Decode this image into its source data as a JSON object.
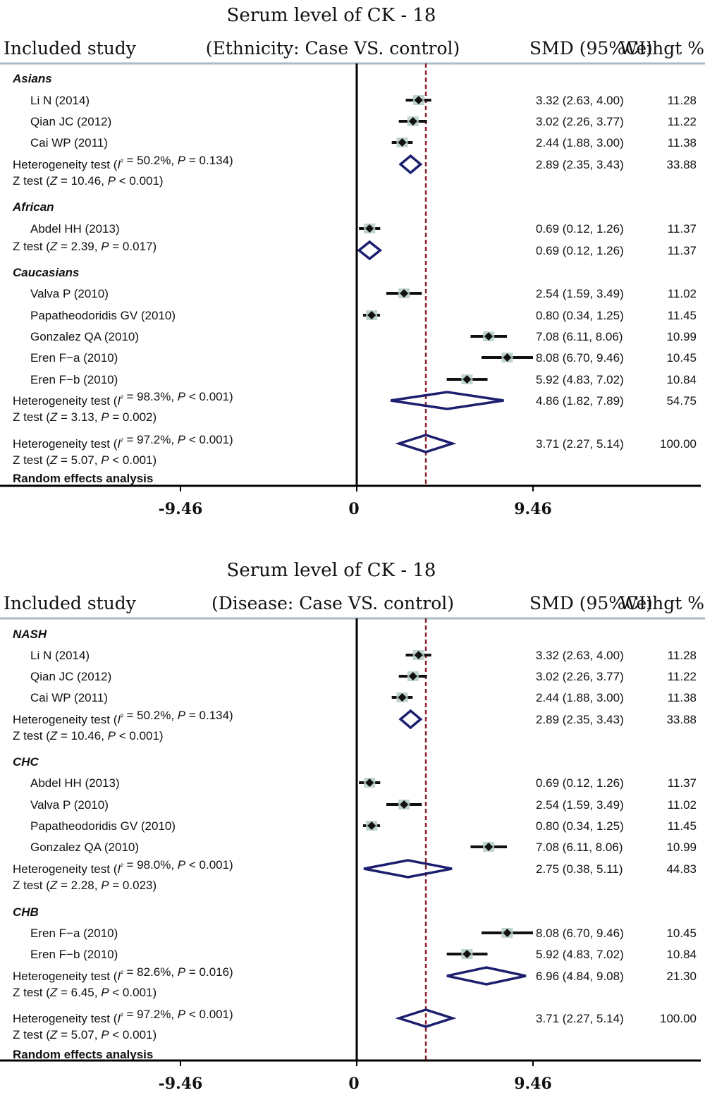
{
  "chart_data": [
    {
      "type": "forest",
      "title": "Serum level of CK - 18",
      "header": {
        "left": "Included study",
        "center": "(Ethnicity: Case VS. control)",
        "right_smd": "SMD (95%CI)",
        "right_weight": "Weihgt %"
      },
      "xticks": [
        "-9.46",
        "0",
        "9.46"
      ],
      "xtick_values": [
        -9.46,
        0,
        9.46
      ],
      "reference_line": 3.71,
      "footer": "Random effects analysis",
      "rows": [
        {
          "kind": "group",
          "label": "Asians"
        },
        {
          "kind": "study",
          "label": "Li N (2014)",
          "est": 3.32,
          "lo": 2.63,
          "hi": 4.0,
          "ci": "3.32 (2.63, 4.00)",
          "weight": "11.28"
        },
        {
          "kind": "study",
          "label": "Qian JC (2012)",
          "est": 3.02,
          "lo": 2.26,
          "hi": 3.77,
          "ci": "3.02 (2.26, 3.77)",
          "weight": "11.22"
        },
        {
          "kind": "study",
          "label": "Cai WP (2011)",
          "est": 2.44,
          "lo": 1.88,
          "hi": 3.0,
          "ci": "2.44 (1.88, 3.00)",
          "weight": "11.38"
        },
        {
          "kind": "pooled",
          "label": "Heterogeneity test (I² = 50.2%, P = 0.134)",
          "ztest": "Z test (Z = 10.46, P < 0.001)",
          "est": 2.89,
          "lo": 2.35,
          "hi": 3.43,
          "ci": "2.89 (2.35, 3.43)",
          "weight": "33.88"
        },
        {
          "kind": "group",
          "label": "African"
        },
        {
          "kind": "study",
          "label": "Abdel HH (2013)",
          "est": 0.69,
          "lo": 0.12,
          "hi": 1.26,
          "ci": "0.69 (0.12, 1.26)",
          "weight": "11.37"
        },
        {
          "kind": "pooled",
          "label": "",
          "ztest": "Z test (Z = 2.39, P = 0.017)",
          "est": 0.69,
          "lo": 0.12,
          "hi": 1.26,
          "ci": "0.69 (0.12, 1.26)",
          "weight": "11.37"
        },
        {
          "kind": "group",
          "label": "Caucasians"
        },
        {
          "kind": "study",
          "label": "Valva P (2010)",
          "est": 2.54,
          "lo": 1.59,
          "hi": 3.49,
          "ci": "2.54 (1.59, 3.49)",
          "weight": "11.02"
        },
        {
          "kind": "study",
          "label": "Papatheodoridis GV (2010)",
          "est": 0.8,
          "lo": 0.34,
          "hi": 1.25,
          "ci": "0.80 (0.34, 1.25)",
          "weight": "11.45"
        },
        {
          "kind": "study",
          "label": "Gonzalez QA (2010)",
          "est": 7.08,
          "lo": 6.11,
          "hi": 8.06,
          "ci": "7.08 (6.11, 8.06)",
          "weight": "10.99"
        },
        {
          "kind": "study",
          "label": "Eren F−a (2010)",
          "est": 8.08,
          "lo": 6.7,
          "hi": 9.46,
          "ci": "8.08 (6.70, 9.46)",
          "weight": "10.45"
        },
        {
          "kind": "study",
          "label": "Eren F−b (2010)",
          "est": 5.92,
          "lo": 4.83,
          "hi": 7.02,
          "ci": "5.92 (4.83, 7.02)",
          "weight": "10.84"
        },
        {
          "kind": "pooled",
          "label": "Heterogeneity test (I² = 98.3%, P < 0.001)",
          "ztest": "Z test (Z = 3.13, P = 0.002)",
          "est": 4.86,
          "lo": 1.82,
          "hi": 7.89,
          "ci": "4.86 (1.82, 7.89)",
          "weight": "54.75"
        },
        {
          "kind": "overall",
          "label": "Heterogeneity test (I² = 97.2%, P < 0.001)",
          "ztest": "Z test (Z = 5.07, P < 0.001)",
          "est": 3.71,
          "lo": 2.27,
          "hi": 5.14,
          "ci": "3.71 (2.27, 5.14)",
          "weight": "100.00"
        }
      ]
    },
    {
      "type": "forest",
      "title": "Serum level of CK - 18",
      "header": {
        "left": "Included study",
        "center": "(Disease: Case VS. control)",
        "right_smd": "SMD (95%CI)",
        "right_weight": "Weihgt %"
      },
      "xticks": [
        "-9.46",
        "0",
        "9.46"
      ],
      "xtick_values": [
        -9.46,
        0,
        9.46
      ],
      "reference_line": 3.71,
      "footer": "Random effects analysis",
      "rows": [
        {
          "kind": "group",
          "label": "NASH"
        },
        {
          "kind": "study",
          "label": "Li N (2014)",
          "est": 3.32,
          "lo": 2.63,
          "hi": 4.0,
          "ci": "3.32 (2.63, 4.00)",
          "weight": "11.28"
        },
        {
          "kind": "study",
          "label": "Qian JC (2012)",
          "est": 3.02,
          "lo": 2.26,
          "hi": 3.77,
          "ci": "3.02 (2.26, 3.77)",
          "weight": "11.22"
        },
        {
          "kind": "study",
          "label": "Cai WP (2011)",
          "est": 2.44,
          "lo": 1.88,
          "hi": 3.0,
          "ci": "2.44 (1.88, 3.00)",
          "weight": "11.38"
        },
        {
          "kind": "pooled",
          "label": "Heterogeneity test (I² = 50.2%, P = 0.134)",
          "ztest": "Z test (Z = 10.46, P < 0.001)",
          "est": 2.89,
          "lo": 2.35,
          "hi": 3.43,
          "ci": "2.89 (2.35, 3.43)",
          "weight": "33.88"
        },
        {
          "kind": "group",
          "label": "CHC"
        },
        {
          "kind": "study",
          "label": "Abdel HH (2013)",
          "est": 0.69,
          "lo": 0.12,
          "hi": 1.26,
          "ci": "0.69 (0.12, 1.26)",
          "weight": "11.37"
        },
        {
          "kind": "study",
          "label": "Valva P (2010)",
          "est": 2.54,
          "lo": 1.59,
          "hi": 3.49,
          "ci": "2.54 (1.59, 3.49)",
          "weight": "11.02"
        },
        {
          "kind": "study",
          "label": "Papatheodoridis GV (2010)",
          "est": 0.8,
          "lo": 0.34,
          "hi": 1.25,
          "ci": "0.80 (0.34, 1.25)",
          "weight": "11.45"
        },
        {
          "kind": "study",
          "label": "Gonzalez QA (2010)",
          "est": 7.08,
          "lo": 6.11,
          "hi": 8.06,
          "ci": "7.08 (6.11, 8.06)",
          "weight": "10.99"
        },
        {
          "kind": "pooled",
          "label": "Heterogeneity test (I² = 98.0%, P < 0.001)",
          "ztest": "Z test (Z = 2.28, P = 0.023)",
          "est": 2.75,
          "lo": 0.38,
          "hi": 5.11,
          "ci": "2.75 (0.38, 5.11)",
          "weight": "44.83"
        },
        {
          "kind": "group",
          "label": "CHB"
        },
        {
          "kind": "study",
          "label": "Eren F−a (2010)",
          "est": 8.08,
          "lo": 6.7,
          "hi": 9.46,
          "ci": "8.08 (6.70, 9.46)",
          "weight": "10.45"
        },
        {
          "kind": "study",
          "label": "Eren F−b (2010)",
          "est": 5.92,
          "lo": 4.83,
          "hi": 7.02,
          "ci": "5.92 (4.83, 7.02)",
          "weight": "10.84"
        },
        {
          "kind": "pooled",
          "label": "Heterogeneity test (I² = 82.6%, P = 0.016)",
          "ztest": "Z test (Z = 6.45, P < 0.001)",
          "est": 6.96,
          "lo": 4.84,
          "hi": 9.08,
          "ci": "6.96 (4.84, 9.08)",
          "weight": "21.30"
        },
        {
          "kind": "overall",
          "label": "Heterogeneity test (I² = 97.2%, P < 0.001)",
          "ztest": "Z test (Z = 5.07, P < 0.001)",
          "est": 3.71,
          "lo": 2.27,
          "hi": 5.14,
          "ci": "3.71 (2.27, 5.14)",
          "weight": "100.00"
        }
      ]
    }
  ],
  "colors": {
    "text": "#111111",
    "study_line": "#111111",
    "study_box": "#b8cfc9",
    "diamond": "#1c1f6e",
    "reference_line": "#8a1f2e",
    "rule": "#a7bcc4",
    "axis": "#000000"
  }
}
